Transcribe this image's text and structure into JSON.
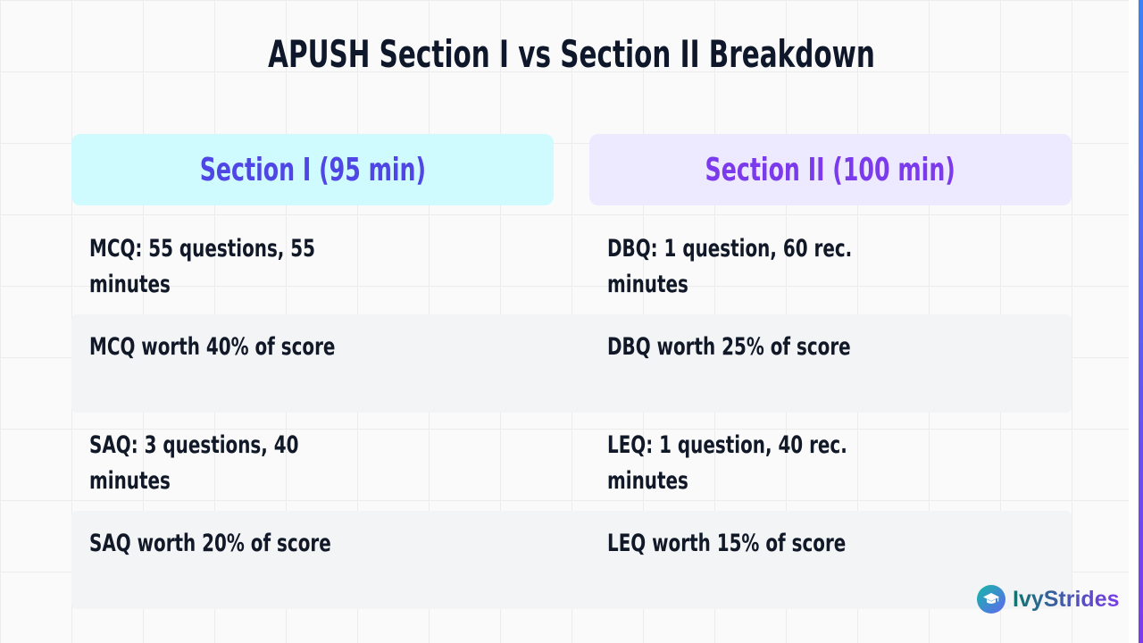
{
  "title": "APUSH Section I vs Section II Breakdown",
  "columns": [
    {
      "header": "Section I (95 min)",
      "rows": [
        "MCQ: 55 questions, 55 minutes",
        "MCQ worth 40% of score",
        "SAQ: 3 questions, 40 minutes",
        "SAQ worth 20% of score"
      ]
    },
    {
      "header": "Section II (100 min)",
      "rows": [
        "DBQ: 1 question, 60 rec. minutes",
        "DBQ worth 25% of score",
        "LEQ: 1 question, 40 rec. minutes",
        "LEQ worth 15% of score"
      ]
    }
  ],
  "logo": {
    "text": "IvyStrides",
    "icon": "graduation-cap-icon"
  },
  "colors": {
    "section1_header_bg": "#cffafe",
    "section1_header_text": "#4f46e5",
    "section2_header_bg": "#ede9fe",
    "section2_header_text": "#7c3aed",
    "accent_stripe_top": "#3b82f6",
    "accent_stripe_bottom": "#7c3aed"
  }
}
